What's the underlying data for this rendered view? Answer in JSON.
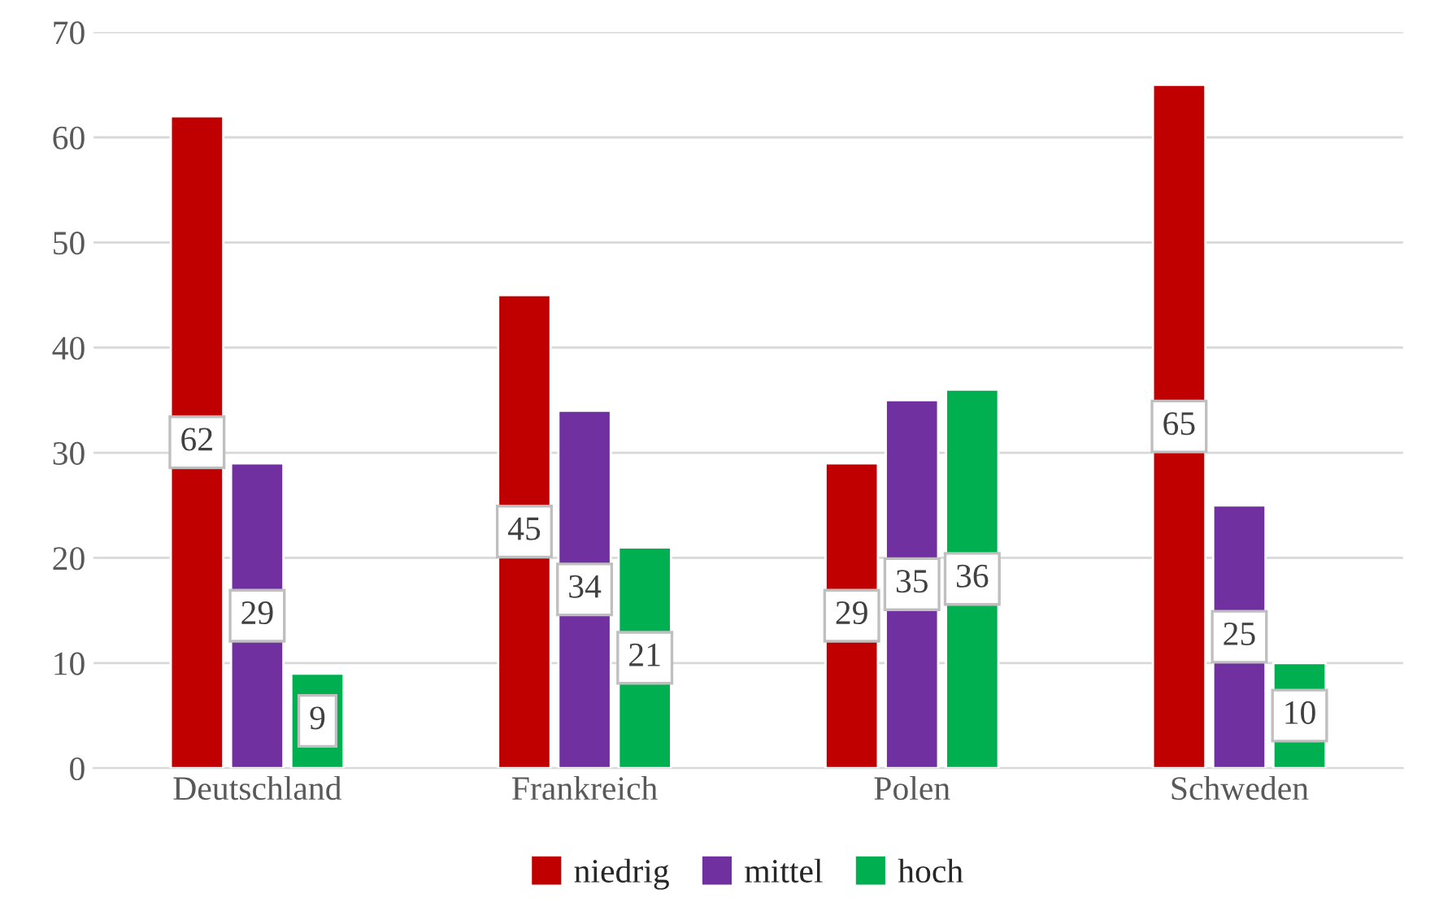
{
  "chart_data": {
    "type": "bar",
    "categories": [
      "Deutschland",
      "Frankreich",
      "Polen",
      "Schweden"
    ],
    "series": [
      {
        "name": "niedrig",
        "color": "#c00000",
        "values": [
          62,
          45,
          29,
          65
        ]
      },
      {
        "name": "mittel",
        "color": "#7030a0",
        "values": [
          29,
          34,
          35,
          25
        ]
      },
      {
        "name": "hoch",
        "color": "#00b050",
        "values": [
          9,
          21,
          36,
          10
        ]
      }
    ],
    "ylim": [
      0,
      70
    ],
    "yticks": [
      0,
      10,
      20,
      30,
      40,
      50,
      60,
      70
    ],
    "grid": "y",
    "legend": "bottom",
    "data_labels": true
  }
}
